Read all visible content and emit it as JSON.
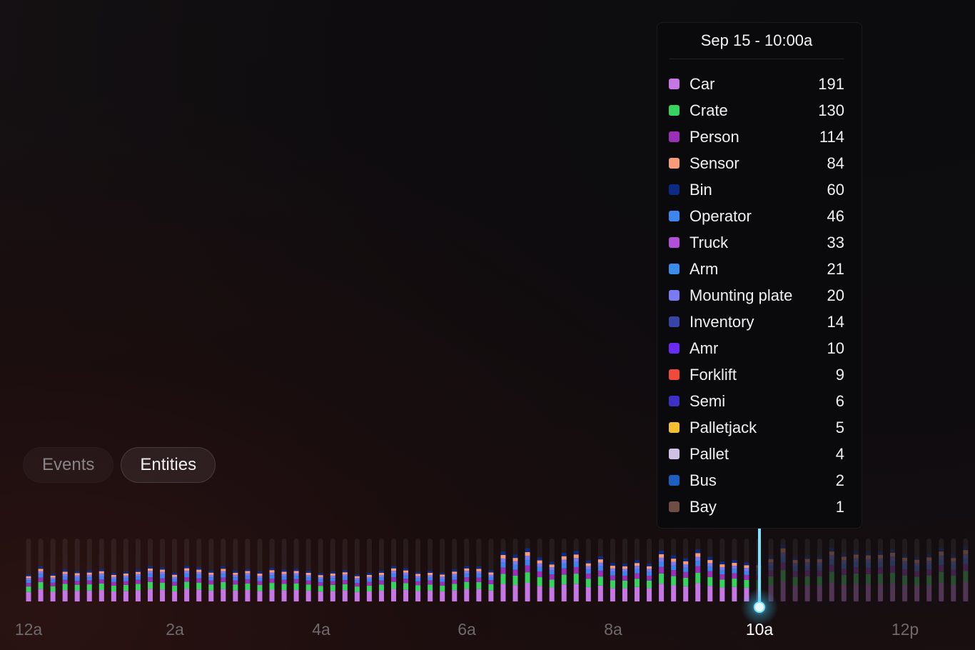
{
  "toggle": {
    "options": [
      "Events",
      "Entities"
    ],
    "selected": "Entities"
  },
  "tooltip": {
    "title": "Sep 15 - 10:00a",
    "items": [
      {
        "name": "Car",
        "value": 191,
        "color": "#c776e6"
      },
      {
        "name": "Crate",
        "value": 130,
        "color": "#37d35f"
      },
      {
        "name": "Person",
        "value": 114,
        "color": "#9b2fb8"
      },
      {
        "name": "Sensor",
        "value": 84,
        "color": "#f79b78"
      },
      {
        "name": "Bin",
        "value": 60,
        "color": "#0c2a84"
      },
      {
        "name": "Operator",
        "value": 46,
        "color": "#3d86f0"
      },
      {
        "name": "Truck",
        "value": 33,
        "color": "#b24fd8"
      },
      {
        "name": "Arm",
        "value": 21,
        "color": "#3a8bea"
      },
      {
        "name": "Mounting plate",
        "value": 20,
        "color": "#7a7af4"
      },
      {
        "name": "Inventory",
        "value": 14,
        "color": "#3844a6"
      },
      {
        "name": "Amr",
        "value": 10,
        "color": "#6a2cf4"
      },
      {
        "name": "Forklift",
        "value": 9,
        "color": "#ef4a3c"
      },
      {
        "name": "Semi",
        "value": 6,
        "color": "#3c30c6"
      },
      {
        "name": "Palletjack",
        "value": 5,
        "color": "#f4c030"
      },
      {
        "name": "Pallet",
        "value": 4,
        "color": "#cfc0e4"
      },
      {
        "name": "Bus",
        "value": 2,
        "color": "#1b5fc0"
      },
      {
        "name": "Bay",
        "value": 1,
        "color": "#6e4d44"
      }
    ]
  },
  "timeline": {
    "axis_labels": [
      "12a",
      "2a",
      "4a",
      "6a",
      "8a",
      "10a",
      "12p"
    ],
    "current_label": "10a"
  }
}
